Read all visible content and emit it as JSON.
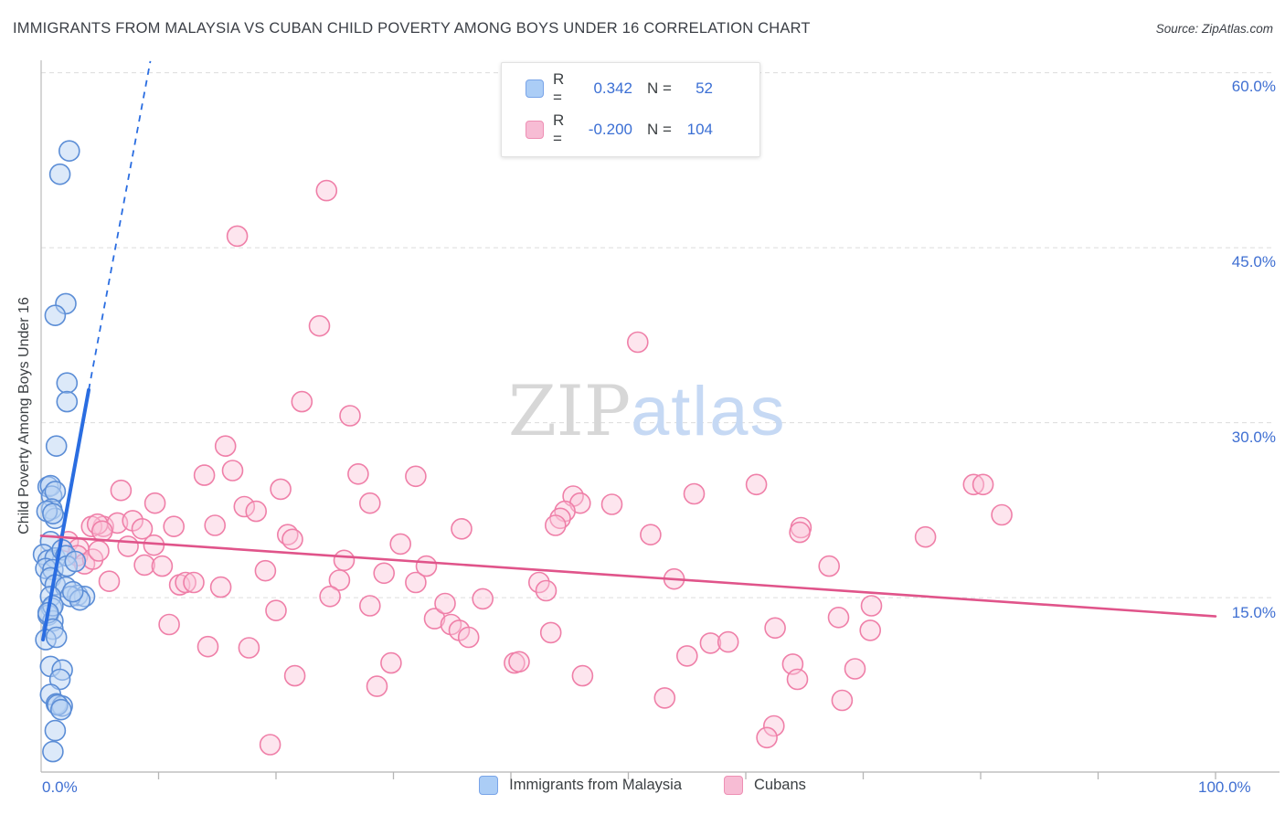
{
  "header": {
    "title": "IMMIGRANTS FROM MALAYSIA VS CUBAN CHILD POVERTY AMONG BOYS UNDER 16 CORRELATION CHART",
    "source": "Source: ZipAtlas.com"
  },
  "legend_box": {
    "rows": [
      {
        "series": "Immigrants from Malaysia",
        "r_label": "R =",
        "r_value": "0.342",
        "n_label": "N =",
        "n_value": "52"
      },
      {
        "series": "Cubans",
        "r_label": "R =",
        "r_value": "-0.200",
        "n_label": "N =",
        "n_value": "104"
      }
    ]
  },
  "watermark": {
    "zip": "ZIP",
    "atlas": "atlas"
  },
  "axes": {
    "y_label": "Child Poverty Among Boys Under 16",
    "y_ticks": [
      "60.0%",
      "45.0%",
      "30.0%",
      "15.0%"
    ],
    "x_min_label": "0.0%",
    "x_max_label": "100.0%"
  },
  "bottom_legend": [
    {
      "label": "Immigrants from Malaysia",
      "color": "#abcdf6",
      "border": "#79a4e8"
    },
    {
      "label": "Cubans",
      "color": "#f7bcd4",
      "border": "#ee8fb4"
    }
  ],
  "chart_data": {
    "type": "scatter",
    "title": "Immigrants from Malaysia vs Cuban Child Poverty Among Boys Under 16",
    "xlabel": "Immigrants from Malaysia (%)",
    "ylabel": "Child Poverty Among Boys Under 16 (%)",
    "xlim": [
      0,
      100
    ],
    "ylim": [
      0,
      62
    ],
    "y_gridlines": [
      15,
      30,
      45,
      60
    ],
    "x_tick_step": 10,
    "grid": "dashed-horizontal",
    "legend_position": "top-center",
    "series": [
      {
        "name": "Immigrants from Malaysia",
        "R": 0.342,
        "N": 52,
        "stroke": "#5b8dd6",
        "fill": "#b9d3f3",
        "fill_opacity": 0.5,
        "points": [
          [
            2.4,
            53.3
          ],
          [
            1.6,
            51.3
          ],
          [
            2.1,
            40.2
          ],
          [
            1.2,
            39.2
          ],
          [
            2.2,
            33.4
          ],
          [
            2.2,
            31.8
          ],
          [
            1.3,
            28.0
          ],
          [
            0.6,
            24.5
          ],
          [
            0.8,
            24.6
          ],
          [
            0.9,
            23.7
          ],
          [
            1.2,
            24.1
          ],
          [
            0.9,
            22.6
          ],
          [
            1.2,
            21.8
          ],
          [
            0.5,
            22.4
          ],
          [
            1.0,
            22.2
          ],
          [
            0.8,
            19.8
          ],
          [
            0.2,
            18.7
          ],
          [
            0.6,
            18.2
          ],
          [
            1.2,
            18.4
          ],
          [
            1.8,
            19.1
          ],
          [
            2.1,
            18.6
          ],
          [
            0.4,
            17.5
          ],
          [
            1.0,
            17.4
          ],
          [
            2.2,
            17.7
          ],
          [
            2.9,
            18.1
          ],
          [
            0.8,
            16.7
          ],
          [
            1.2,
            16.1
          ],
          [
            2.1,
            15.9
          ],
          [
            3.1,
            15.2
          ],
          [
            3.7,
            15.1
          ],
          [
            2.5,
            15.1
          ],
          [
            0.8,
            15.1
          ],
          [
            0.9,
            14.1
          ],
          [
            0.6,
            13.5
          ],
          [
            1.0,
            13.0
          ],
          [
            3.3,
            14.8
          ],
          [
            2.7,
            15.5
          ],
          [
            1.0,
            14.3
          ],
          [
            0.6,
            13.7
          ],
          [
            1.0,
            12.3
          ],
          [
            0.4,
            11.4
          ],
          [
            1.3,
            11.6
          ],
          [
            0.8,
            9.1
          ],
          [
            1.8,
            8.8
          ],
          [
            1.6,
            8.0
          ],
          [
            0.8,
            6.7
          ],
          [
            1.3,
            5.9
          ],
          [
            1.8,
            5.7
          ],
          [
            1.4,
            5.8
          ],
          [
            1.7,
            5.4
          ],
          [
            1.2,
            3.6
          ],
          [
            1.0,
            1.8
          ]
        ],
        "trend": {
          "solid": [
            [
              0.16,
              11.4
            ],
            [
              4.05,
              32.8
            ]
          ],
          "dashed": [
            [
              4.05,
              32.8
            ],
            [
              9.3,
              61.0
            ]
          ]
        }
      },
      {
        "name": "Cubans",
        "R": -0.2,
        "N": 104,
        "stroke": "#ef7fa8",
        "fill": "#fac6d9",
        "fill_opacity": 0.45,
        "points": [
          [
            24.3,
            49.9
          ],
          [
            16.7,
            46.0
          ],
          [
            23.7,
            38.3
          ],
          [
            22.2,
            31.8
          ],
          [
            26.3,
            30.6
          ],
          [
            50.8,
            36.9
          ],
          [
            45.3,
            23.7
          ],
          [
            45.9,
            23.1
          ],
          [
            44.6,
            22.4
          ],
          [
            44.2,
            21.8
          ],
          [
            43.8,
            21.2
          ],
          [
            48.6,
            23.0
          ],
          [
            55.6,
            23.9
          ],
          [
            60.9,
            24.7
          ],
          [
            51.9,
            20.4
          ],
          [
            64.7,
            21.0
          ],
          [
            79.4,
            24.7
          ],
          [
            80.2,
            24.7
          ],
          [
            81.8,
            22.1
          ],
          [
            75.3,
            20.2
          ],
          [
            6.8,
            24.2
          ],
          [
            9.7,
            23.1
          ],
          [
            5.3,
            21.1
          ],
          [
            6.5,
            21.4
          ],
          [
            7.8,
            21.6
          ],
          [
            8.6,
            20.9
          ],
          [
            7.4,
            19.4
          ],
          [
            9.6,
            19.5
          ],
          [
            15.7,
            28.0
          ],
          [
            16.3,
            25.9
          ],
          [
            13.9,
            25.5
          ],
          [
            17.3,
            22.8
          ],
          [
            18.3,
            22.4
          ],
          [
            20.4,
            24.3
          ],
          [
            14.8,
            21.2
          ],
          [
            21.0,
            20.4
          ],
          [
            21.4,
            20.0
          ],
          [
            27.0,
            25.6
          ],
          [
            31.9,
            25.4
          ],
          [
            28.0,
            23.1
          ],
          [
            30.6,
            19.6
          ],
          [
            35.8,
            20.9
          ],
          [
            11.3,
            21.1
          ],
          [
            8.8,
            17.8
          ],
          [
            10.3,
            17.7
          ],
          [
            11.8,
            16.1
          ],
          [
            12.3,
            16.3
          ],
          [
            13.0,
            16.3
          ],
          [
            15.3,
            15.9
          ],
          [
            19.1,
            17.3
          ],
          [
            20.0,
            13.9
          ],
          [
            10.9,
            12.7
          ],
          [
            14.2,
            10.8
          ],
          [
            17.7,
            10.7
          ],
          [
            21.6,
            8.3
          ],
          [
            25.4,
            16.5
          ],
          [
            24.6,
            15.1
          ],
          [
            25.8,
            18.2
          ],
          [
            28.0,
            14.3
          ],
          [
            29.2,
            17.1
          ],
          [
            29.8,
            9.4
          ],
          [
            28.6,
            7.4
          ],
          [
            31.9,
            16.3
          ],
          [
            32.8,
            17.7
          ],
          [
            33.5,
            13.2
          ],
          [
            34.4,
            14.5
          ],
          [
            34.9,
            12.7
          ],
          [
            35.6,
            12.2
          ],
          [
            36.4,
            11.6
          ],
          [
            37.6,
            14.9
          ],
          [
            40.3,
            9.4
          ],
          [
            19.5,
            2.4
          ],
          [
            42.4,
            16.3
          ],
          [
            43.0,
            15.6
          ],
          [
            53.9,
            16.6
          ],
          [
            67.1,
            17.7
          ],
          [
            64.6,
            20.6
          ],
          [
            70.7,
            14.3
          ],
          [
            67.9,
            13.3
          ],
          [
            70.6,
            12.2
          ],
          [
            43.4,
            12.0
          ],
          [
            62.5,
            12.4
          ],
          [
            57.0,
            11.1
          ],
          [
            58.5,
            11.2
          ],
          [
            55.0,
            10.0
          ],
          [
            40.7,
            9.5
          ],
          [
            46.1,
            8.3
          ],
          [
            64.0,
            9.3
          ],
          [
            64.4,
            8.0
          ],
          [
            69.3,
            8.9
          ],
          [
            53.1,
            6.4
          ],
          [
            68.2,
            6.2
          ],
          [
            62.4,
            4.0
          ],
          [
            61.8,
            3.0
          ],
          [
            2.3,
            19.8
          ],
          [
            3.2,
            19.2
          ],
          [
            4.3,
            21.1
          ],
          [
            4.8,
            21.3
          ],
          [
            5.2,
            20.7
          ],
          [
            3.1,
            18.6
          ],
          [
            3.7,
            17.9
          ],
          [
            4.4,
            18.3
          ],
          [
            4.9,
            19.0
          ],
          [
            5.8,
            16.4
          ]
        ],
        "trend": {
          "solid": [
            [
              0,
              20.3
            ],
            [
              100,
              13.4
            ]
          ]
        }
      }
    ],
    "trend_colors": {
      "Immigrants from Malaysia": "#2a6de1",
      "Cubans": "#e0548a"
    }
  }
}
